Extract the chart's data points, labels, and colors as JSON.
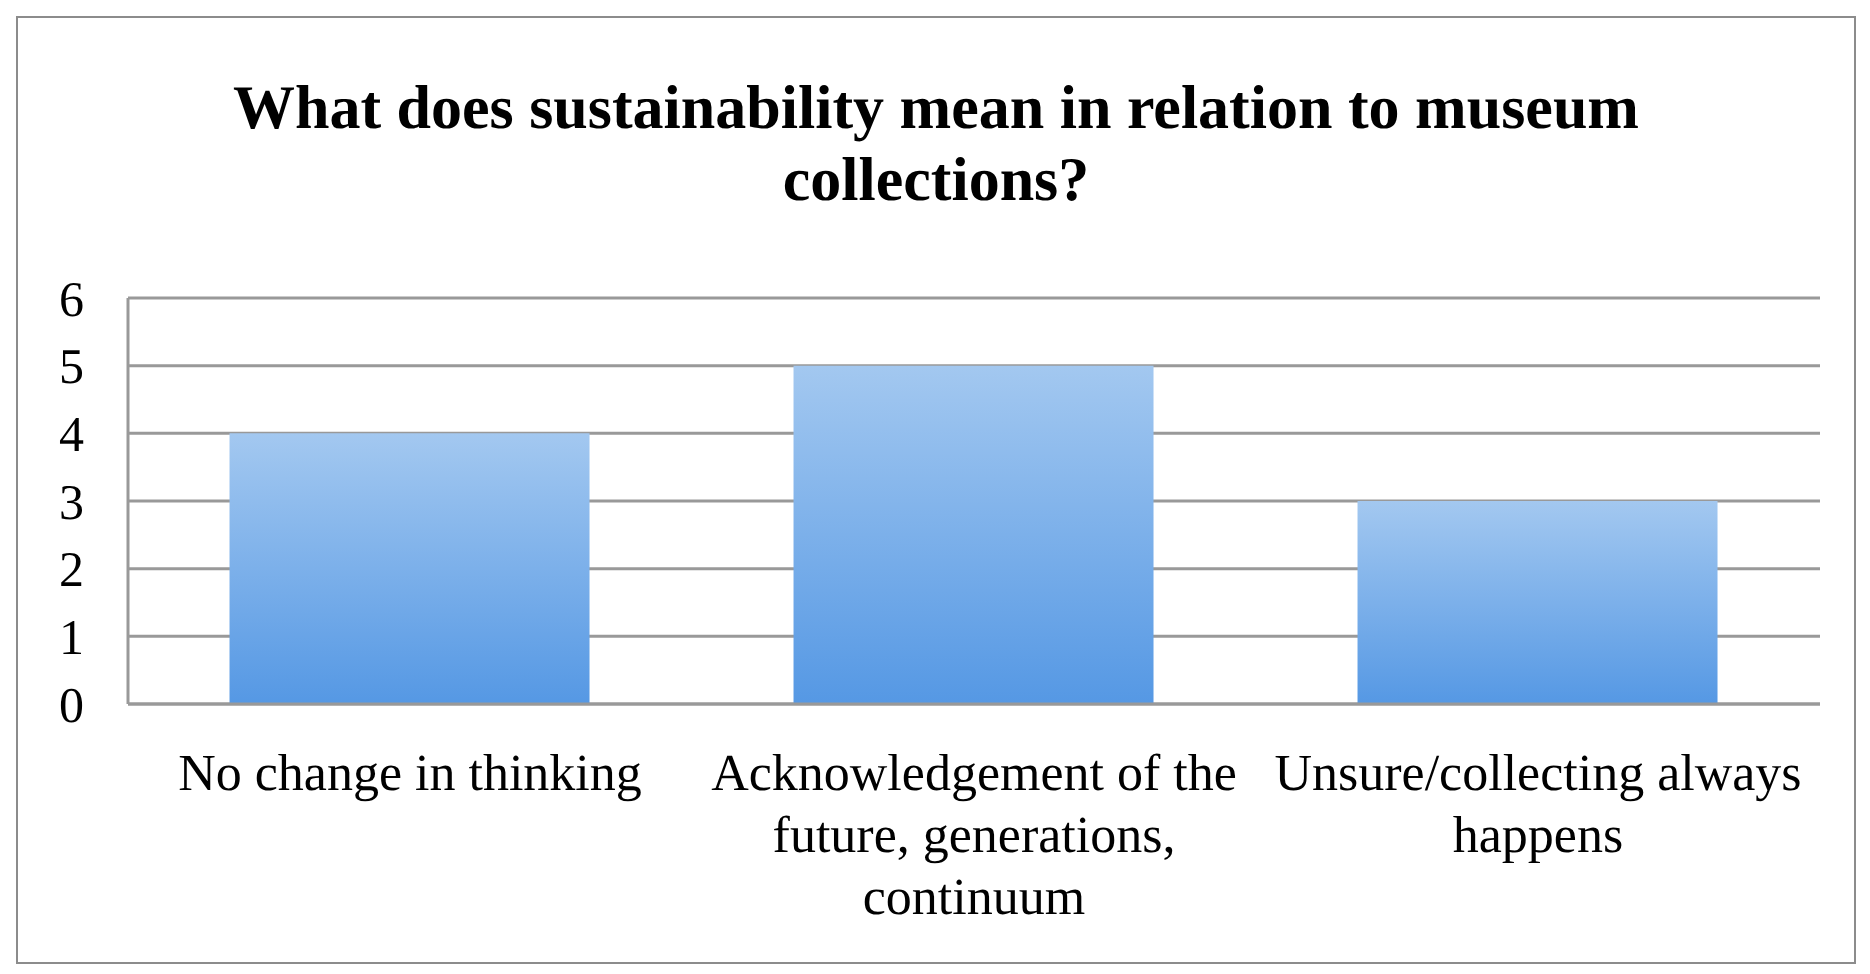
{
  "chart_data": {
    "type": "bar",
    "title": "What does sustainability mean in relation to museum collections?",
    "categories": [
      "No change in thinking",
      "Acknowledgement of the future, generations, continuum",
      "Unsure/collecting always happens"
    ],
    "values": [
      4,
      5,
      3
    ],
    "color": "#7cb0ea",
    "ylim": [
      0,
      6
    ],
    "yticks": [
      0,
      1,
      2,
      3,
      4,
      5,
      6
    ],
    "grid": "y"
  }
}
